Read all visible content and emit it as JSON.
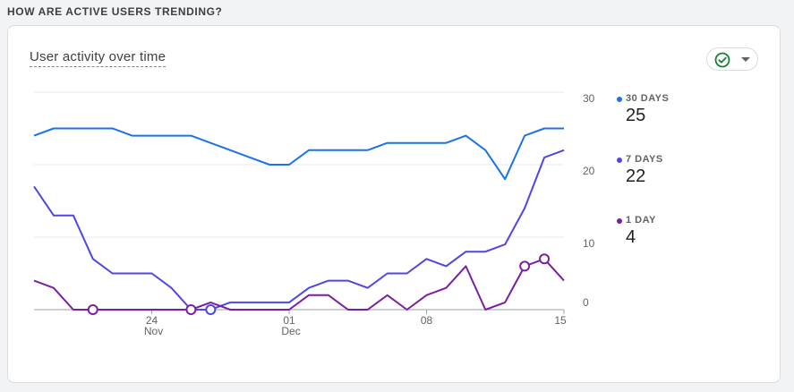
{
  "section_title": "HOW ARE ACTIVE USERS TRENDING?",
  "card": {
    "title": "User activity over time",
    "status_icon": "check-circle-icon",
    "dropdown_icon": "caret-down-icon"
  },
  "legend": [
    {
      "label": "30 DAYS",
      "value": "25",
      "color": "#1a73e8"
    },
    {
      "label": "7 DAYS",
      "value": "22",
      "color": "#4f46e5"
    },
    {
      "label": "1 DAY",
      "value": "4",
      "color": "#7b1fa2"
    }
  ],
  "chart_data": {
    "type": "line",
    "title": "",
    "xlabel": "",
    "ylabel": "",
    "ylim": [
      0,
      30
    ],
    "yticks": [
      "30",
      "20",
      "10",
      "0"
    ],
    "xticks": [
      {
        "index": 6,
        "day": "24",
        "month": "Nov"
      },
      {
        "index": 13,
        "day": "01",
        "month": "Dec"
      },
      {
        "index": 20,
        "day": "08",
        "month": ""
      },
      {
        "index": 27,
        "day": "15",
        "month": ""
      }
    ],
    "grid": true,
    "legend_position": "right",
    "series": [
      {
        "name": "30 DAYS",
        "color": "#1a73e8",
        "values": [
          24,
          25,
          25,
          25,
          25,
          24,
          24,
          24,
          24,
          23,
          22,
          21,
          20,
          20,
          22,
          22,
          22,
          22,
          23,
          23,
          23,
          23,
          24,
          22,
          18,
          24,
          25,
          25
        ],
        "markers": []
      },
      {
        "name": "7 DAYS",
        "color": "#4f46e5",
        "values": [
          17,
          13,
          13,
          7,
          5,
          5,
          5,
          3,
          0,
          0,
          1,
          1,
          1,
          1,
          3,
          4,
          4,
          3,
          5,
          5,
          7,
          6,
          8,
          8,
          9,
          14,
          21,
          22
        ],
        "markers": [
          9
        ]
      },
      {
        "name": "1 DAY",
        "color": "#7b1fa2",
        "values": [
          4,
          3,
          0,
          0,
          0,
          0,
          0,
          0,
          0,
          1,
          0,
          0,
          0,
          0,
          2,
          2,
          0,
          0,
          2,
          0,
          2,
          3,
          6,
          0,
          1,
          6,
          7,
          4
        ],
        "markers": [
          3,
          8,
          25,
          26
        ]
      }
    ]
  }
}
